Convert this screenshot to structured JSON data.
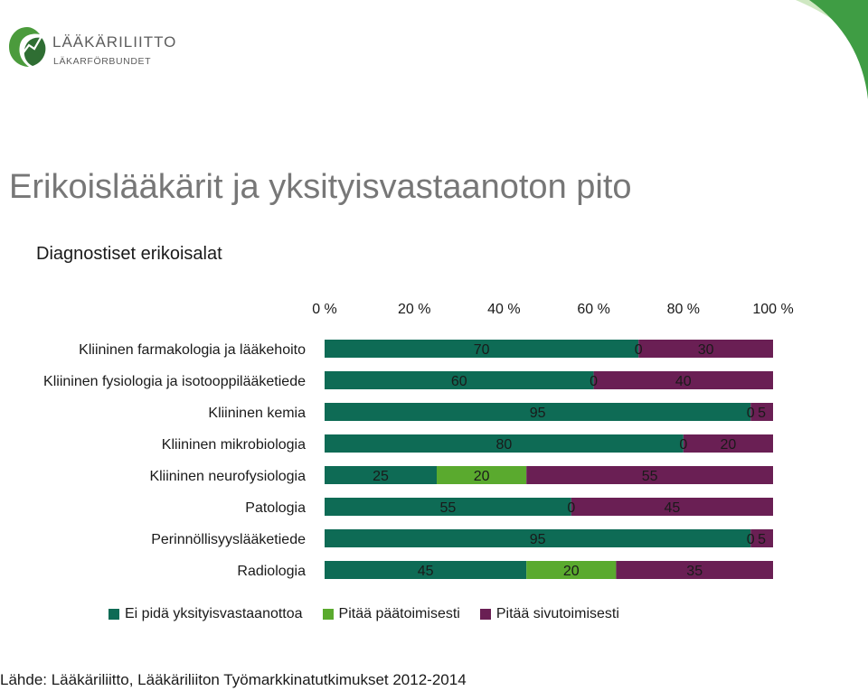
{
  "header": {
    "logo_name": "LÄÄKÄRILIITTO",
    "logo_sub": "LÄKARFÖRBUNDET",
    "title": "Erikoislääkärit ja yksityisvastaanoton pito",
    "subtitle": "Diagnostiset erikoisalat"
  },
  "colors": {
    "series1": "#0e6b55",
    "series2": "#5aaa2e",
    "series3": "#6a1f54",
    "corner_light": "#cfe8c2",
    "corner_dark": "#3f9d44",
    "logo_green": "#4b9b3c",
    "logo_dark": "#2f6e33"
  },
  "chart_data": {
    "type": "bar",
    "orientation": "horizontal",
    "stacked": "percent",
    "categories": [
      "Kliininen farmakologia ja lääkehoito",
      "Kliininen fysiologia ja isotooppilääketiede",
      "Kliininen kemia",
      "Kliininen mikrobiologia",
      "Kliininen neurofysiologia",
      "Patologia",
      "Perinnöllisyyslääketiede",
      "Radiologia"
    ],
    "series": [
      {
        "name": "Ei pidä yksityisvastaanottoa",
        "values": [
          70,
          60,
          95,
          80,
          25,
          55,
          95,
          45
        ]
      },
      {
        "name": "Pitää päätoimisesti",
        "values": [
          0,
          0,
          0,
          0,
          20,
          0,
          0,
          20
        ]
      },
      {
        "name": "Pitää sivutoimisesti",
        "values": [
          30,
          40,
          5,
          20,
          55,
          45,
          5,
          35
        ]
      }
    ],
    "x_ticks": [
      "0 %",
      "20 %",
      "40 %",
      "60 %",
      "80 %",
      "100 %"
    ],
    "xlim": [
      0,
      100
    ],
    "x_axis_position": "top",
    "legend_position": "bottom",
    "grid": false
  },
  "source": "Lähde: Lääkäriliitto, Lääkäriliiton Työmarkkinatutkimukset 2012-2014"
}
